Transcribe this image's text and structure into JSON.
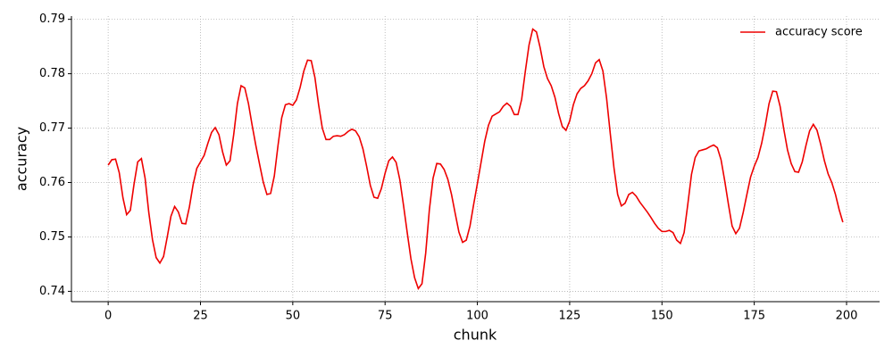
{
  "chart_data": {
    "type": "line",
    "xlabel": "chunk",
    "ylabel": "accuracy",
    "x": [
      0,
      1,
      2,
      3,
      4,
      5,
      6,
      7,
      8,
      9,
      10,
      11,
      12,
      13,
      14,
      15,
      16,
      17,
      18,
      19,
      20,
      21,
      22,
      23,
      24,
      25,
      26,
      27,
      28,
      29,
      30,
      31,
      32,
      33,
      34,
      35,
      36,
      37,
      38,
      39,
      40,
      41,
      42,
      43,
      44,
      45,
      46,
      47,
      48,
      49,
      50,
      51,
      52,
      53,
      54,
      55,
      56,
      57,
      58,
      59,
      60,
      61,
      62,
      63,
      64,
      65,
      66,
      67,
      68,
      69,
      70,
      71,
      72,
      73,
      74,
      75,
      76,
      77,
      78,
      79,
      80,
      81,
      82,
      83,
      84,
      85,
      86,
      87,
      88,
      89,
      90,
      91,
      92,
      93,
      94,
      95,
      96,
      97,
      98,
      99,
      100,
      101,
      102,
      103,
      104,
      105,
      106,
      107,
      108,
      109,
      110,
      111,
      112,
      113,
      114,
      115,
      116,
      117,
      118,
      119,
      120,
      121,
      122,
      123,
      124,
      125,
      126,
      127,
      128,
      129,
      130,
      131,
      132,
      133,
      134,
      135,
      136,
      137,
      138,
      139,
      140,
      141,
      142,
      143,
      144,
      145,
      146,
      147,
      148,
      149,
      150,
      151,
      152,
      153,
      154,
      155,
      156,
      157,
      158,
      159,
      160,
      161,
      162,
      163,
      164,
      165,
      166,
      167,
      168,
      169,
      170,
      171,
      172,
      173,
      174,
      175,
      176,
      177,
      178,
      179,
      180,
      181,
      182,
      183,
      184,
      185,
      186,
      187,
      188,
      189,
      190,
      191,
      192,
      193,
      194,
      195,
      196,
      197,
      198,
      199
    ],
    "series": [
      {
        "name": "accuracy score",
        "color": "#ee0000",
        "values": [
          0.7632,
          0.7642,
          0.7643,
          0.7618,
          0.7572,
          0.7541,
          0.7549,
          0.7597,
          0.7638,
          0.7644,
          0.7608,
          0.7545,
          0.7495,
          0.7462,
          0.7452,
          0.7464,
          0.75,
          0.7538,
          0.7556,
          0.7546,
          0.7525,
          0.7524,
          0.7555,
          0.7596,
          0.7626,
          0.7638,
          0.765,
          0.7672,
          0.7692,
          0.7701,
          0.7688,
          0.7656,
          0.7632,
          0.764,
          0.7688,
          0.7745,
          0.7778,
          0.7774,
          0.7745,
          0.7705,
          0.7668,
          0.7634,
          0.7601,
          0.7578,
          0.758,
          0.7612,
          0.7668,
          0.7719,
          0.7743,
          0.7745,
          0.7742,
          0.7752,
          0.7775,
          0.7805,
          0.7825,
          0.7824,
          0.7793,
          0.7743,
          0.77,
          0.7679,
          0.7679,
          0.7685,
          0.7686,
          0.7685,
          0.7688,
          0.7694,
          0.7698,
          0.7695,
          0.7684,
          0.7662,
          0.763,
          0.7595,
          0.7573,
          0.7571,
          0.7589,
          0.7617,
          0.764,
          0.7647,
          0.7637,
          0.7605,
          0.7558,
          0.7508,
          0.746,
          0.7425,
          0.7405,
          0.7414,
          0.747,
          0.755,
          0.7608,
          0.7635,
          0.7634,
          0.7624,
          0.7606,
          0.7578,
          0.7543,
          0.7509,
          0.749,
          0.7494,
          0.752,
          0.756,
          0.7598,
          0.7637,
          0.7676,
          0.7705,
          0.7722,
          0.7726,
          0.773,
          0.774,
          0.7746,
          0.774,
          0.7725,
          0.7725,
          0.7753,
          0.7805,
          0.7853,
          0.7882,
          0.7877,
          0.7848,
          0.7813,
          0.7791,
          0.7778,
          0.7757,
          0.7727,
          0.7703,
          0.7696,
          0.7713,
          0.7743,
          0.7763,
          0.7773,
          0.7778,
          0.7787,
          0.78,
          0.782,
          0.7826,
          0.7805,
          0.7755,
          0.769,
          0.7627,
          0.7578,
          0.7557,
          0.7562,
          0.7578,
          0.7582,
          0.7575,
          0.7564,
          0.7555,
          0.7546,
          0.7536,
          0.7525,
          0.7516,
          0.751,
          0.751,
          0.7512,
          0.7508,
          0.7494,
          0.7488,
          0.7508,
          0.756,
          0.7615,
          0.7646,
          0.7658,
          0.766,
          0.7662,
          0.7666,
          0.7669,
          0.7664,
          0.7642,
          0.7603,
          0.756,
          0.752,
          0.7506,
          0.7516,
          0.7545,
          0.7578,
          0.761,
          0.763,
          0.7646,
          0.7672,
          0.7706,
          0.7745,
          0.7768,
          0.7767,
          0.774,
          0.7698,
          0.766,
          0.7635,
          0.762,
          0.7619,
          0.7638,
          0.7668,
          0.7695,
          0.7707,
          0.7696,
          0.767,
          0.764,
          0.7616,
          0.76,
          0.7578,
          0.755,
          0.7527
        ]
      }
    ],
    "xlim": [
      -9.95,
      208.95
    ],
    "xticks": [
      0,
      25,
      50,
      75,
      100,
      125,
      150,
      175,
      200
    ],
    "ylim": [
      0.7381,
      0.7906
    ],
    "yticks": [
      0.74,
      0.75,
      0.76,
      0.77,
      0.78,
      0.79
    ],
    "grid": true,
    "legend": "upper right"
  }
}
